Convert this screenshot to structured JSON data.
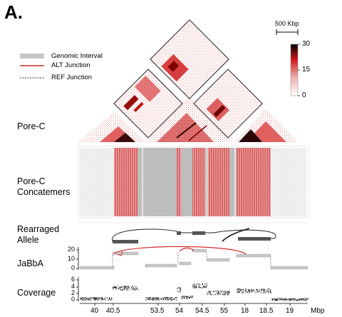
{
  "panel_letter": "A.",
  "legend": {
    "items": [
      {
        "label": "Genomic Interval",
        "style": "gray-bar"
      },
      {
        "label": "ALT Junction",
        "style": "red-line"
      },
      {
        "label": "REF Junction",
        "style": "dashed-line"
      }
    ]
  },
  "scale_bar_label": "500 Kbp",
  "colorbar": {
    "max": "30",
    "mid": "15",
    "min": "0",
    "colors": [
      "#ffffff",
      "#f0b0b0",
      "#d01818",
      "#000000"
    ]
  },
  "row_labels": {
    "pore_c": "Pore-C",
    "concatemers_1": "Pore-C",
    "concatemers_2": "Concatemers",
    "rearranged_1": "Rearraged",
    "rearranged_2": "Allele",
    "jabba": "JaBbA",
    "coverage": "Coverage"
  },
  "jabba_axis": [
    "20",
    "10",
    "0"
  ],
  "coverage_axis": [
    "6",
    "4",
    "2",
    "0"
  ],
  "x_axis": {
    "ticks": [
      "40",
      "40.5",
      "53.5",
      "54",
      "54.5",
      "55",
      "18",
      "18.5",
      "19"
    ],
    "unit": "Mbp"
  },
  "colors": {
    "hic_red": "#d01818",
    "alt_junction": "#d03030",
    "interval_gray": "#c8c8c8",
    "concatemer_gray": "#bdbdbd"
  }
}
